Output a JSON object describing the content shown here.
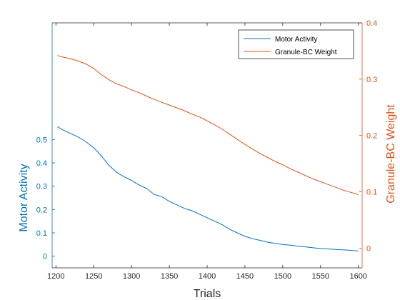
{
  "chart_data": {
    "type": "line",
    "title": "",
    "xlabel": "Trials",
    "ylabel_left": "Motor Activity",
    "ylabel_right": "Granule-BC Weight",
    "xlim": [
      1195,
      1605
    ],
    "ylim_left": [
      -0.05,
      1.0
    ],
    "ylim_right": [
      -0.035,
      0.4
    ],
    "x_ticks": [
      1200,
      1250,
      1300,
      1350,
      1400,
      1450,
      1500,
      1550,
      1600
    ],
    "y_ticks_left": [
      0,
      0.1,
      0.2,
      0.3,
      0.4,
      0.5
    ],
    "y_ticks_right": [
      0,
      0.1,
      0.2,
      0.3,
      0.4
    ],
    "grid": false,
    "legend_position": "top-right",
    "colors": {
      "left_axis": "#0072BD",
      "right_axis": "#D95319"
    },
    "series": [
      {
        "name": "Motor Activity",
        "axis": "left",
        "x": [
          1202,
          1210,
          1220,
          1230,
          1240,
          1250,
          1260,
          1270,
          1280,
          1290,
          1300,
          1310,
          1320,
          1330,
          1340,
          1350,
          1360,
          1370,
          1380,
          1390,
          1400,
          1410,
          1420,
          1430,
          1440,
          1450,
          1460,
          1470,
          1480,
          1490,
          1500,
          1510,
          1520,
          1530,
          1540,
          1550,
          1560,
          1570,
          1580,
          1590,
          1600
        ],
        "values": [
          0.555,
          0.54,
          0.525,
          0.51,
          0.49,
          0.465,
          0.43,
          0.39,
          0.36,
          0.34,
          0.325,
          0.305,
          0.29,
          0.265,
          0.255,
          0.235,
          0.22,
          0.205,
          0.195,
          0.18,
          0.165,
          0.15,
          0.135,
          0.115,
          0.1,
          0.085,
          0.075,
          0.068,
          0.06,
          0.055,
          0.05,
          0.047,
          0.043,
          0.04,
          0.036,
          0.033,
          0.031,
          0.029,
          0.027,
          0.025,
          0.022
        ]
      },
      {
        "name": "Granule-BC Weight",
        "axis": "right",
        "x": [
          1202,
          1210,
          1220,
          1230,
          1240,
          1250,
          1260,
          1270,
          1280,
          1290,
          1300,
          1310,
          1320,
          1330,
          1340,
          1350,
          1360,
          1370,
          1380,
          1390,
          1400,
          1410,
          1420,
          1430,
          1440,
          1450,
          1460,
          1470,
          1480,
          1490,
          1500,
          1510,
          1520,
          1530,
          1540,
          1550,
          1560,
          1570,
          1580,
          1590,
          1600
        ],
        "values": [
          0.342,
          0.339,
          0.336,
          0.332,
          0.327,
          0.319,
          0.308,
          0.299,
          0.292,
          0.287,
          0.281,
          0.276,
          0.27,
          0.264,
          0.259,
          0.254,
          0.249,
          0.244,
          0.238,
          0.233,
          0.226,
          0.219,
          0.211,
          0.202,
          0.193,
          0.184,
          0.176,
          0.168,
          0.161,
          0.154,
          0.148,
          0.141,
          0.135,
          0.129,
          0.123,
          0.118,
          0.113,
          0.108,
          0.103,
          0.099,
          0.095
        ]
      }
    ]
  }
}
